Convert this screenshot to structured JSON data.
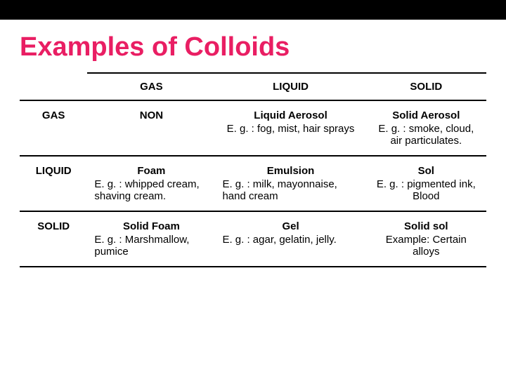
{
  "title": "Examples of Colloids",
  "title_color": "#e91e63",
  "background_color": "#ffffff",
  "topbar_color": "#000000",
  "table": {
    "columns": [
      "GAS",
      "LIQUID",
      "SOLID"
    ],
    "rows": [
      {
        "label": "GAS",
        "cells": [
          {
            "title": "NON",
            "sub": ""
          },
          {
            "title": "Liquid Aerosol",
            "sub": "E. g. : fog, mist, hair sprays"
          },
          {
            "title": "Solid Aerosol",
            "sub": "E. g. : smoke, cloud, air particulates."
          }
        ]
      },
      {
        "label": "LIQUID",
        "cells": [
          {
            "title": "Foam",
            "sub": "E. g. : whipped cream, shaving cream."
          },
          {
            "title": "Emulsion",
            "sub": "E. g. : milk, mayonnaise, hand cream"
          },
          {
            "title": "Sol",
            "sub": "E. g. : pigmented ink, Blood"
          }
        ]
      },
      {
        "label": "SOLID",
        "cells": [
          {
            "title": "Solid Foam",
            "sub": "E. g. : Marshmallow, pumice"
          },
          {
            "title": "Gel",
            "sub": "E. g. : agar, gelatin, jelly."
          },
          {
            "title": "Solid sol",
            "sub": "Example: Certain alloys"
          }
        ]
      }
    ]
  }
}
